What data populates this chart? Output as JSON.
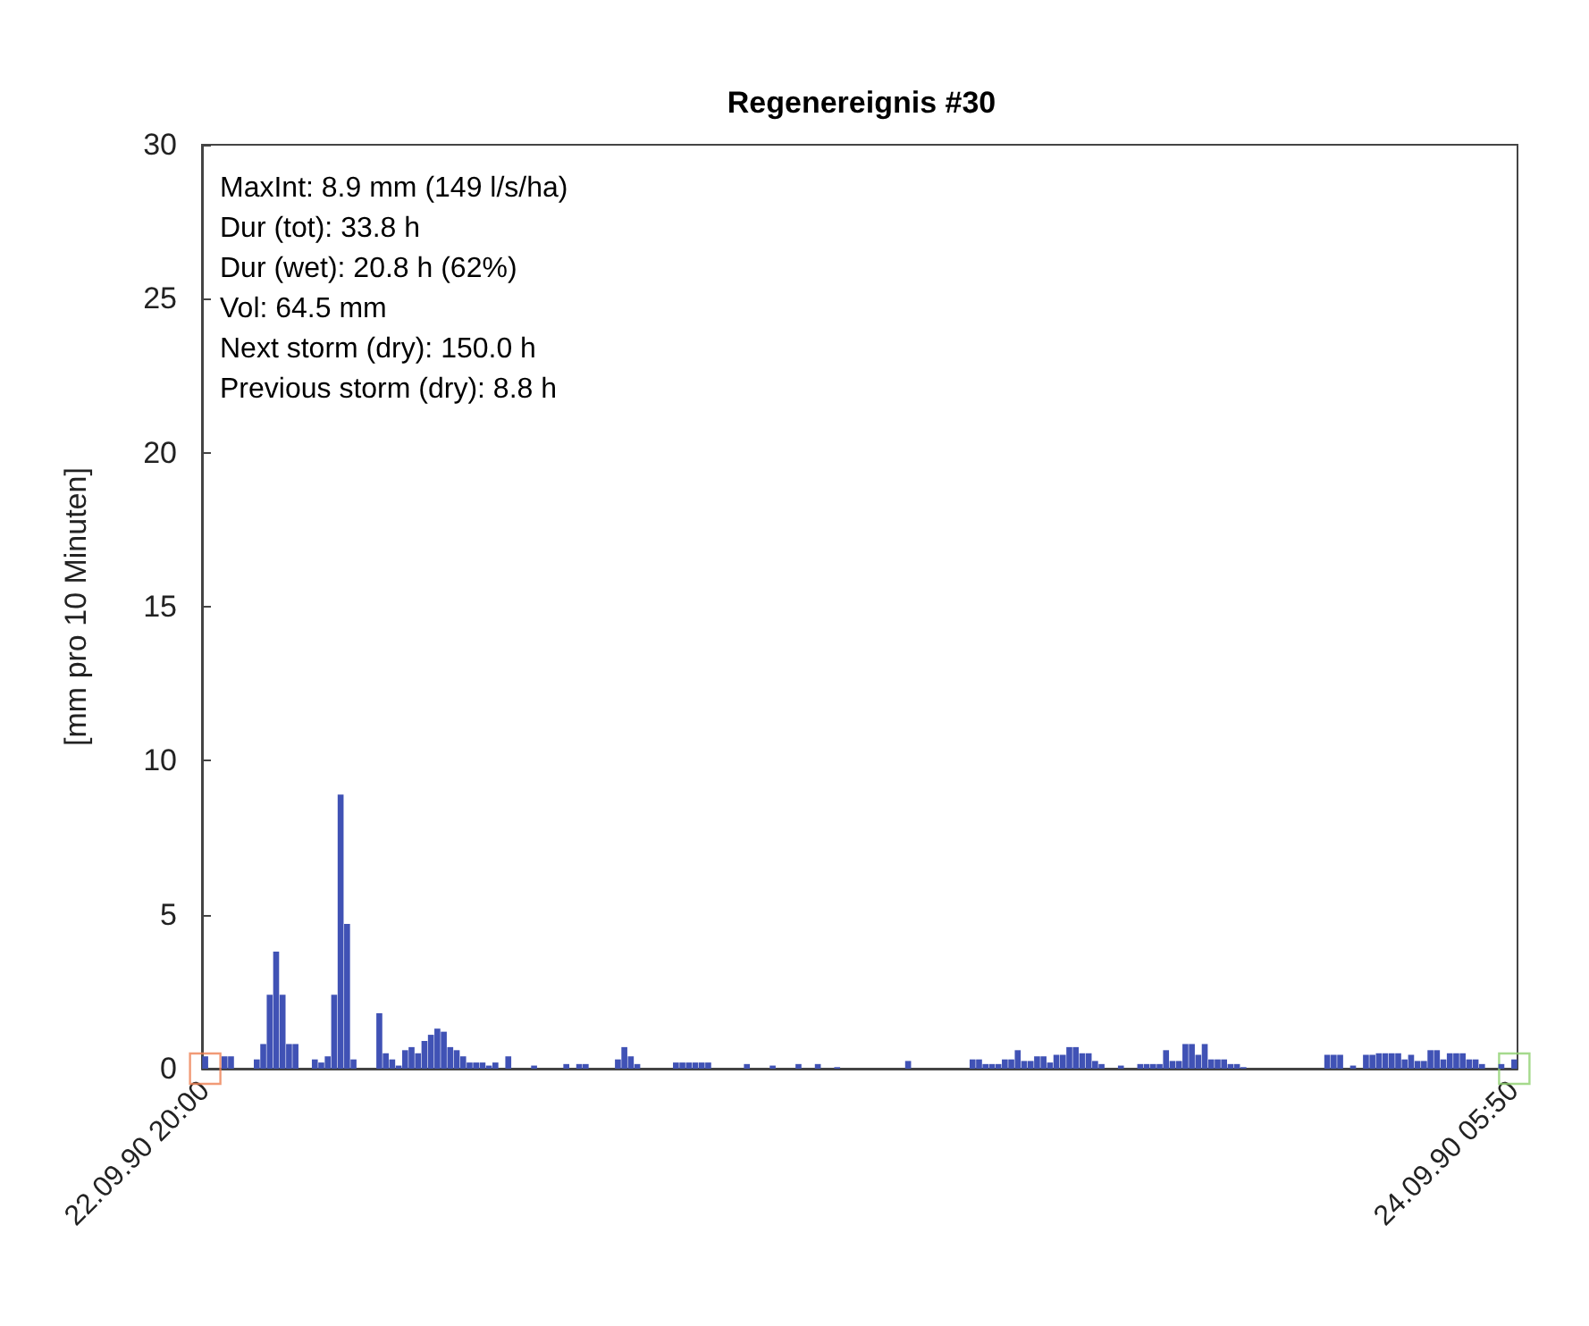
{
  "chart_data": {
    "type": "bar",
    "title": "Regenereignis #30",
    "ylabel": "[mm pro 10 Minuten]",
    "annotations": [
      "MaxInt: 8.9 mm (149 l/s/ha)",
      "Dur (tot): 33.8 h",
      "Dur (wet): 20.8 h (62%)",
      "Vol: 64.5 mm",
      "Next storm (dry): 150.0 h",
      "Previous storm (dry): 8.8 h"
    ],
    "categories": [
      "22.09.90 20:00",
      null,
      null,
      null,
      null,
      null,
      null,
      null,
      null,
      null,
      null,
      null,
      null,
      null,
      null,
      null,
      null,
      null,
      null,
      null,
      null,
      null,
      null,
      null,
      null,
      null,
      null,
      null,
      null,
      null,
      null,
      null,
      null,
      null,
      null,
      null,
      null,
      null,
      null,
      null,
      null,
      null,
      null,
      null,
      null,
      null,
      null,
      null,
      null,
      null,
      null,
      null,
      null,
      null,
      null,
      null,
      null,
      null,
      null,
      null,
      null,
      null,
      null,
      null,
      null,
      null,
      null,
      null,
      null,
      null,
      null,
      null,
      null,
      null,
      null,
      null,
      null,
      null,
      null,
      null,
      null,
      null,
      null,
      null,
      null,
      null,
      null,
      null,
      null,
      null,
      null,
      null,
      null,
      null,
      null,
      null,
      null,
      null,
      null,
      null,
      null,
      null,
      null,
      null,
      null,
      null,
      null,
      null,
      null,
      null,
      null,
      null,
      null,
      null,
      null,
      null,
      null,
      null,
      null,
      null,
      null,
      null,
      null,
      null,
      null,
      null,
      null,
      null,
      null,
      null,
      null,
      null,
      null,
      null,
      null,
      null,
      null,
      null,
      null,
      null,
      null,
      null,
      null,
      null,
      null,
      null,
      null,
      null,
      null,
      null,
      null,
      null,
      null,
      null,
      null,
      null,
      null,
      null,
      null,
      null,
      null,
      null,
      null,
      null,
      null,
      null,
      null,
      null,
      null,
      null,
      null,
      null,
      null,
      null,
      null,
      null,
      null,
      null,
      null,
      null,
      null,
      null,
      null,
      null,
      null,
      null,
      null,
      null,
      null,
      null,
      null,
      null,
      null,
      null,
      null,
      null,
      null,
      null,
      null,
      null,
      null,
      null,
      null,
      "24.09.90 05:50"
    ],
    "series": [
      {
        "color": "#4052b5",
        "values": [
          0.4,
          0,
          0,
          0.4,
          0.4,
          0,
          0,
          0,
          0.3,
          0.8,
          2.4,
          3.8,
          2.4,
          0.8,
          0.8,
          0,
          0,
          0.3,
          0.2,
          0.4,
          2.4,
          8.9,
          4.7,
          0.3,
          0,
          0,
          0,
          1.8,
          0.5,
          0.3,
          0.1,
          0.6,
          0.7,
          0.5,
          0.9,
          1.1,
          1.3,
          1.2,
          0.7,
          0.6,
          0.4,
          0.2,
          0.2,
          0.2,
          0.1,
          0.2,
          0,
          0.4,
          0,
          0,
          0,
          0.1,
          0,
          0,
          0,
          0,
          0.15,
          0,
          0.15,
          0.15,
          0,
          0,
          0,
          0,
          0.3,
          0.7,
          0.4,
          0.15,
          0,
          0,
          0,
          0,
          0,
          0.2,
          0.2,
          0.2,
          0.2,
          0.2,
          0.2,
          0,
          0,
          0,
          0,
          0,
          0.15,
          0,
          0,
          0,
          0.1,
          0,
          0,
          0,
          0.15,
          0,
          0,
          0.15,
          0,
          0,
          0.05,
          0,
          0,
          0,
          0,
          0,
          0,
          0,
          0,
          0,
          0,
          0.25,
          0,
          0,
          0,
          0,
          0,
          0,
          0,
          0,
          0,
          0.3,
          0.3,
          0.15,
          0.15,
          0.15,
          0.3,
          0.3,
          0.6,
          0.25,
          0.25,
          0.4,
          0.4,
          0.2,
          0.45,
          0.45,
          0.7,
          0.7,
          0.5,
          0.5,
          0.25,
          0.15,
          0,
          0,
          0.1,
          0,
          0,
          0.15,
          0.15,
          0.15,
          0.15,
          0.6,
          0.25,
          0.25,
          0.8,
          0.8,
          0.45,
          0.8,
          0.3,
          0.3,
          0.3,
          0.15,
          0.15,
          0.05,
          0,
          0,
          0,
          0,
          0,
          0,
          0,
          0,
          0,
          0,
          0,
          0,
          0.45,
          0.45,
          0.45,
          0,
          0.1,
          0,
          0.45,
          0.45,
          0.5,
          0.5,
          0.5,
          0.5,
          0.3,
          0.45,
          0.25,
          0.25,
          0.6,
          0.6,
          0.3,
          0.5,
          0.5,
          0.5,
          0.3,
          0.3,
          0.15,
          0,
          0,
          0.15,
          0,
          0.3
        ]
      },
      {
        "type": "scatter",
        "marker": "square",
        "color": "#ee8154",
        "x": [
          "22.09.90 20:00"
        ],
        "values": [
          0
        ]
      },
      {
        "type": "scatter",
        "marker": "square",
        "color": "#8fd16f",
        "x": [
          "24.09.90 05:50"
        ],
        "values": [
          0
        ]
      }
    ],
    "ylim": [
      0,
      30
    ],
    "yticks": [
      0,
      5,
      10,
      15,
      20,
      25,
      30
    ],
    "grid": false
  }
}
